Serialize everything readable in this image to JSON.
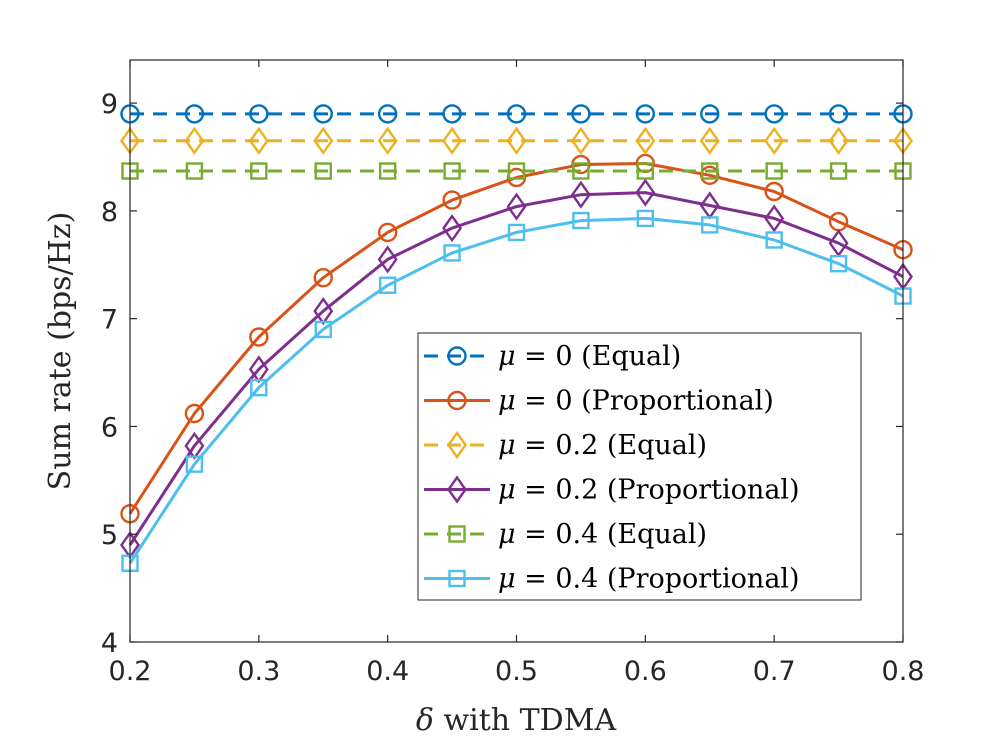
{
  "chart_data": {
    "type": "line",
    "title": "",
    "xlabel": "δ with TDMA",
    "xlabel_symbol": "δ",
    "xlabel_rest": " with TDMA",
    "ylabel": "Sum rate (bps/Hz)",
    "xlim": [
      0.2,
      0.8
    ],
    "ylim": [
      4,
      9.4
    ],
    "grid": false,
    "legend_position": "lower-right",
    "xticks": [
      0.2,
      0.3,
      0.4,
      0.5,
      0.6,
      0.7,
      0.8
    ],
    "xtick_labels": [
      "0.2",
      "0.3",
      "0.4",
      "0.5",
      "0.6",
      "0.7",
      "0.8"
    ],
    "yticks": [
      4,
      5,
      6,
      7,
      8,
      9
    ],
    "ytick_labels": [
      "4",
      "5",
      "6",
      "7",
      "8",
      "9"
    ],
    "x": [
      0.2,
      0.25,
      0.3,
      0.35,
      0.4,
      0.45,
      0.5,
      0.55,
      0.6,
      0.65,
      0.7,
      0.75,
      0.8
    ],
    "series": [
      {
        "name": "μ = 0 (Equal)",
        "mu": "0",
        "scheme": "(Equal)",
        "color": "#0072BD",
        "dashed": true,
        "marker": "circle",
        "values": [
          8.9,
          8.9,
          8.9,
          8.9,
          8.9,
          8.9,
          8.9,
          8.9,
          8.9,
          8.9,
          8.9,
          8.9,
          8.9
        ]
      },
      {
        "name": "μ = 0 (Proportional)",
        "mu": "0",
        "scheme": "(Proportional)",
        "color": "#D95319",
        "dashed": false,
        "marker": "circle",
        "values": [
          5.19,
          6.12,
          6.83,
          7.38,
          7.8,
          8.1,
          8.31,
          8.43,
          8.44,
          8.33,
          8.18,
          7.9,
          7.64
        ]
      },
      {
        "name": "μ = 0.2 (Equal)",
        "mu": "0.2",
        "scheme": "(Equal)",
        "color": "#EDB120",
        "dashed": true,
        "marker": "diamond",
        "values": [
          8.65,
          8.65,
          8.65,
          8.65,
          8.65,
          8.65,
          8.65,
          8.65,
          8.65,
          8.65,
          8.65,
          8.65,
          8.65
        ]
      },
      {
        "name": "μ = 0.2 (Proportional)",
        "mu": "0.2",
        "scheme": "(Proportional)",
        "color": "#7E2F8E",
        "dashed": false,
        "marker": "diamond",
        "values": [
          4.9,
          5.82,
          6.53,
          7.07,
          7.55,
          7.84,
          8.04,
          8.15,
          8.17,
          8.05,
          7.93,
          7.7,
          7.39
        ]
      },
      {
        "name": "μ = 0.4 (Equal)",
        "mu": "0.4",
        "scheme": "(Equal)",
        "color": "#77AC30",
        "dashed": true,
        "marker": "square",
        "values": [
          8.37,
          8.37,
          8.37,
          8.37,
          8.37,
          8.37,
          8.37,
          8.37,
          8.37,
          8.37,
          8.37,
          8.37,
          8.37
        ]
      },
      {
        "name": "μ = 0.4 (Proportional)",
        "mu": "0.4",
        "scheme": "(Proportional)",
        "color": "#4DBEEE",
        "dashed": false,
        "marker": "square",
        "values": [
          4.73,
          5.65,
          6.36,
          6.9,
          7.31,
          7.61,
          7.8,
          7.91,
          7.93,
          7.87,
          7.73,
          7.51,
          7.21
        ]
      }
    ]
  }
}
